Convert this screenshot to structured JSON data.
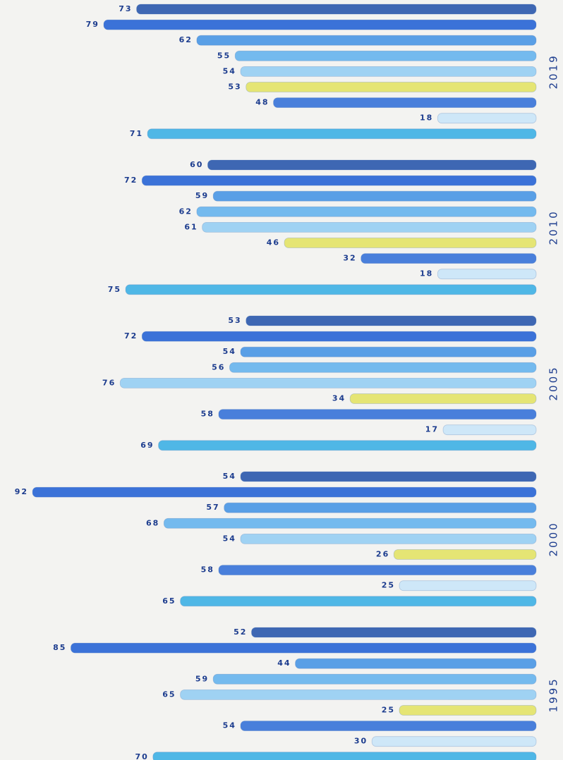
{
  "chart_data": {
    "type": "bar",
    "orientation": "horizontal",
    "categories": [
      "2019",
      "2010",
      "2005",
      "2000",
      "1995"
    ],
    "series": [
      {
        "color": "#2f5cae",
        "values": [
          73,
          60,
          53,
          54,
          52
        ]
      },
      {
        "color": "#2c68d6",
        "values": [
          79,
          72,
          72,
          92,
          85
        ]
      },
      {
        "color": "#4c98e6",
        "values": [
          62,
          59,
          54,
          57,
          44
        ]
      },
      {
        "color": "#6ab6ee",
        "values": [
          55,
          62,
          56,
          68,
          59
        ]
      },
      {
        "color": "#98d0f4",
        "values": [
          54,
          61,
          76,
          54,
          65
        ]
      },
      {
        "color": "#e4e46a",
        "values": [
          53,
          46,
          34,
          26,
          25
        ]
      },
      {
        "color": "#3b76da",
        "values": [
          48,
          32,
          58,
          58,
          54
        ]
      },
      {
        "color": "#cbe7f9",
        "values": [
          18,
          18,
          17,
          25,
          30
        ]
      },
      {
        "color": "#42b2e6",
        "values": [
          71,
          75,
          69,
          65,
          70
        ]
      }
    ]
  }
}
